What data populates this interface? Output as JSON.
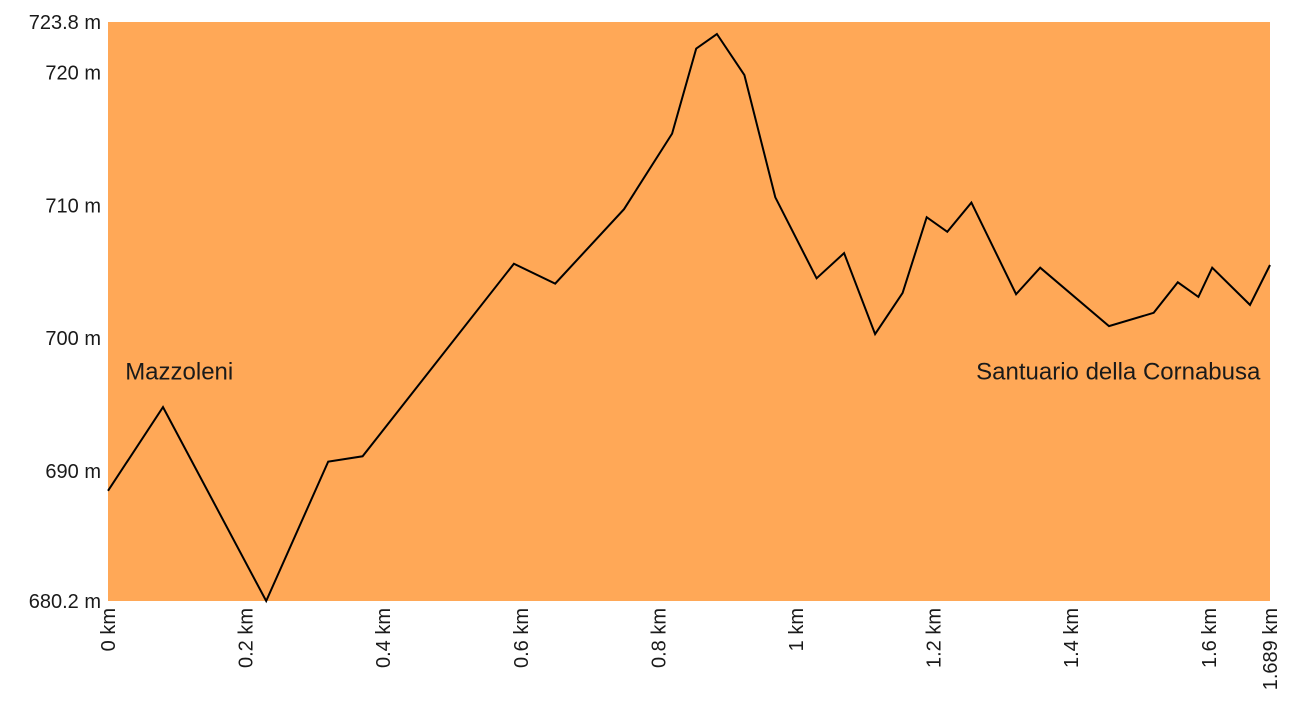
{
  "chart_data": {
    "type": "area",
    "title": "",
    "xlabel": "",
    "ylabel": "",
    "xlim": [
      0,
      1.689
    ],
    "ylim": [
      680.2,
      723.8
    ],
    "grid": false,
    "fill_color": "#FFA857",
    "line_color": "#000000",
    "y_ticks": [
      {
        "value": 723.8,
        "label": "723.8 m"
      },
      {
        "value": 720,
        "label": "720 m"
      },
      {
        "value": 710,
        "label": "710 m"
      },
      {
        "value": 700,
        "label": "700 m"
      },
      {
        "value": 690,
        "label": "690 m"
      },
      {
        "value": 680.2,
        "label": "680.2 m"
      }
    ],
    "x_ticks": [
      {
        "value": 0,
        "label": "0 km"
      },
      {
        "value": 0.2,
        "label": "0.2 km"
      },
      {
        "value": 0.4,
        "label": "0.4 km"
      },
      {
        "value": 0.6,
        "label": "0.6 km"
      },
      {
        "value": 0.8,
        "label": "0.8 km"
      },
      {
        "value": 1,
        "label": "1 km"
      },
      {
        "value": 1.2,
        "label": "1.2 km"
      },
      {
        "value": 1.4,
        "label": "1.4 km"
      },
      {
        "value": 1.6,
        "label": "1.6 km"
      },
      {
        "value": 1.689,
        "label": "1.689 km"
      }
    ],
    "x": [
      0,
      0.08,
      0.23,
      0.32,
      0.37,
      0.59,
      0.65,
      0.75,
      0.82,
      0.855,
      0.885,
      0.925,
      0.97,
      1.03,
      1.07,
      1.115,
      1.155,
      1.19,
      1.22,
      1.255,
      1.32,
      1.355,
      1.455,
      1.52,
      1.555,
      1.585,
      1.605,
      1.66,
      1.689
    ],
    "y": [
      688.5,
      694.8,
      680.2,
      690.7,
      691.1,
      705.6,
      704.1,
      709.7,
      715.4,
      721.8,
      722.9,
      719.8,
      710.6,
      704.5,
      706.4,
      700.3,
      703.4,
      709.1,
      708.0,
      710.2,
      703.3,
      705.3,
      700.9,
      701.9,
      704.2,
      703.1,
      705.3,
      702.5,
      705.5
    ],
    "annotations": [
      {
        "text": "Mazzoleni",
        "x": 0.025,
        "y": 697.5
      },
      {
        "text": "Santuario della Cornabusa",
        "x": 1.675,
        "y": 697.5
      }
    ]
  }
}
